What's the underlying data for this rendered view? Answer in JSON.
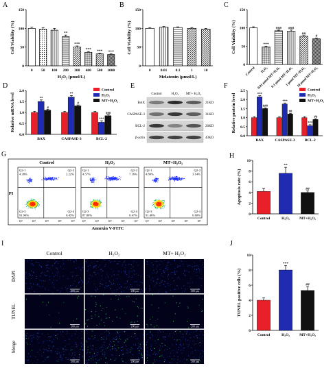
{
  "panels": {
    "A": {
      "label": "A",
      "ylabel": "Cell Viability (%)",
      "xlabel": "H₂O₂ (μmol/L)",
      "categories": [
        "0",
        "50",
        "100",
        "200",
        "300",
        "400",
        "500",
        "1000"
      ],
      "values": [
        100,
        98,
        95,
        78,
        50,
        36,
        32,
        30
      ],
      "errors": [
        3,
        4,
        5,
        4,
        3,
        2,
        2,
        2
      ],
      "sig": [
        "",
        "",
        "",
        "**",
        "***",
        "***",
        "***",
        "***"
      ],
      "ylim": [
        0,
        150
      ],
      "yticks": [
        0,
        50,
        100,
        150
      ]
    },
    "B": {
      "label": "B",
      "ylabel": "Cell Viability (%)",
      "xlabel": "Melatonin (μmol/L)",
      "categories": [
        "0",
        "0.01",
        "0.1",
        "1",
        "10"
      ],
      "values": [
        100,
        103,
        102,
        100,
        98
      ],
      "errors": [
        2,
        2,
        2,
        2,
        2
      ],
      "ylim": [
        0,
        150
      ],
      "yticks": [
        0,
        50,
        100,
        150
      ]
    },
    "C": {
      "label": "C",
      "ylabel": "Cell Viability (%)",
      "categories": [
        "Control",
        "H₂O₂",
        "0.01 μmol MT+H₂O₂",
        "0.1 μmol MT+H₂O₂",
        "1 μmol MT+H₂O₂",
        "10 μmol MT+H₂O₂"
      ],
      "values": [
        100,
        48,
        92,
        91,
        77,
        70
      ],
      "errors": [
        3,
        2,
        2,
        3,
        2,
        2
      ],
      "sig": [
        "",
        "***",
        "###",
        "###",
        "##",
        "#"
      ],
      "ylim": [
        0,
        150
      ],
      "yticks": [
        0,
        50,
        100,
        150
      ]
    },
    "D": {
      "label": "D",
      "ylabel": "Relative mRNA level",
      "categories": [
        "BAX",
        "CASPASE-3",
        "BCL-2"
      ],
      "series": [
        {
          "name": "Control",
          "values": [
            1.0,
            1.0,
            1.0
          ],
          "sig": [
            "",
            "",
            ""
          ]
        },
        {
          "name": "H₂O₂",
          "values": [
            1.5,
            1.7,
            0.55
          ],
          "sig": [
            "**",
            "**",
            "***"
          ]
        },
        {
          "name": "MT+H₂O₂",
          "values": [
            1.1,
            1.3,
            0.85
          ],
          "sig": [
            "#",
            "#",
            "###"
          ]
        }
      ],
      "errors": [
        0.05,
        0.07,
        0.04
      ],
      "ylim": [
        0,
        2.0
      ],
      "yticks": [
        0,
        0.5,
        1.0,
        1.5,
        2.0
      ]
    },
    "E": {
      "label": "E",
      "headers": [
        "Control",
        "H₂O₂",
        "MT+ H₂O₂"
      ],
      "bands": [
        {
          "name": "BAX",
          "kd": "21KD"
        },
        {
          "name": "CASPASE-3",
          "kd": "31KD"
        },
        {
          "name": "BCL-2",
          "kd": "26KD"
        },
        {
          "name": "β-actin",
          "kd": "43KD"
        }
      ]
    },
    "F": {
      "label": "F",
      "ylabel": "Relative protein level",
      "categories": [
        "BAX",
        "CASPASE-3",
        "BCL-2"
      ],
      "series": [
        {
          "name": "Control",
          "values": [
            1.0,
            1.0,
            1.0
          ],
          "sig": [
            "",
            "",
            ""
          ]
        },
        {
          "name": "H₂O₂",
          "values": [
            2.15,
            1.75,
            0.55
          ],
          "sig": [
            "***",
            "***",
            "***"
          ]
        },
        {
          "name": "MT+H₂O₂",
          "values": [
            1.5,
            1.2,
            0.9
          ],
          "sig": [
            "###",
            "##",
            "##"
          ]
        }
      ],
      "errors": [
        0.05,
        0.06,
        0.04
      ],
      "ylim": [
        0,
        2.5
      ],
      "yticks": [
        0.0,
        0.5,
        1.0,
        1.5,
        2.0,
        2.5
      ]
    },
    "G": {
      "label": "G",
      "xlabel": "Annexin V-FITC",
      "ylabel": "PI",
      "plots": [
        {
          "title": "Control",
          "q1": "Q2-1\n4.38%",
          "q2": "Q2-2\n2.22%",
          "q3": "Q2-3\n91.94%",
          "q4": "Q2-4\n0.45%"
        },
        {
          "title": "H₂O₂",
          "q1": "Q2-1\n4.57%",
          "q2": "Q2-2\n7.16%",
          "q3": "Q2-3\n87.80%",
          "q4": "Q2-4\n0.47%"
        },
        {
          "title": "MT+H₂O₂",
          "q1": "Q2-1\n4.80%",
          "q2": "Q2-2\n3.14%",
          "q3": "Q2-3\n91.46%",
          "q4": "Q2-4\n0.60%"
        }
      ],
      "ticks": [
        "10³",
        "10⁴",
        "10⁵",
        "10⁶",
        "10⁷"
      ]
    },
    "H": {
      "label": "H",
      "ylabel": "Apoptosis rate (%)",
      "categories": [
        "Control",
        "H₂O₂",
        "MT+H₂O₂"
      ],
      "values": [
        4.2,
        7.6,
        4.0
      ],
      "errors": [
        0.6,
        1.1,
        0.3
      ],
      "sig": [
        "",
        "**",
        "##"
      ],
      "ylim": [
        0,
        10
      ],
      "yticks": [
        0,
        2,
        4,
        6,
        8,
        10
      ]
    },
    "I": {
      "label": "I",
      "columns": [
        "Control",
        "H₂O₂",
        "MT+ H₂O₂"
      ],
      "rows": [
        "DAPI",
        "TUNEL",
        "Merge"
      ],
      "scale": "200 μm"
    },
    "J": {
      "label": "J",
      "ylabel": "TUNEL positive cells (%)",
      "categories": [
        "Control",
        "H₂O₂",
        "MT+H₂O₂"
      ],
      "values": [
        4.0,
        8.0,
        5.3
      ],
      "errors": [
        0.3,
        0.6,
        0.5
      ],
      "sig": [
        "",
        "***",
        "##"
      ],
      "ylim": [
        0,
        10
      ],
      "yticks": [
        0,
        2,
        4,
        6,
        8,
        10
      ]
    }
  },
  "colors": {
    "control": "#e8202a",
    "h2o2": "#1f2bb0",
    "mt": "#111111"
  },
  "chart_data": [
    {
      "type": "bar",
      "categories": [
        "0",
        "50",
        "100",
        "200",
        "300",
        "400",
        "500",
        "1000"
      ],
      "values": [
        100,
        98,
        95,
        78,
        50,
        36,
        32,
        30
      ],
      "xlabel": "H₂O₂ (μmol/L)",
      "ylabel": "Cell Viability (%)",
      "ylim": [
        0,
        150
      ]
    },
    {
      "type": "bar",
      "categories": [
        "0",
        "0.01",
        "0.1",
        "1",
        "10"
      ],
      "values": [
        100,
        103,
        102,
        100,
        98
      ],
      "xlabel": "Melatonin (μmol/L)",
      "ylabel": "Cell Viability (%)",
      "ylim": [
        0,
        150
      ]
    },
    {
      "type": "bar",
      "categories": [
        "Control",
        "H₂O₂",
        "0.01 μmol MT+H₂O₂",
        "0.1 μmol MT+H₂O₂",
        "1 μmol MT+H₂O₂",
        "10 μmol MT+H₂O₂"
      ],
      "values": [
        100,
        48,
        92,
        91,
        77,
        70
      ],
      "ylabel": "Cell Viability (%)",
      "ylim": [
        0,
        150
      ]
    },
    {
      "type": "bar",
      "categories": [
        "BAX",
        "CASPASE-3",
        "BCL-2"
      ],
      "series": [
        {
          "name": "Control",
          "values": [
            1.0,
            1.0,
            1.0
          ]
        },
        {
          "name": "H₂O₂",
          "values": [
            1.5,
            1.7,
            0.55
          ]
        },
        {
          "name": "MT+H₂O₂",
          "values": [
            1.1,
            1.3,
            0.85
          ]
        }
      ],
      "ylabel": "Relative mRNA level",
      "ylim": [
        0,
        2.0
      ]
    },
    {
      "type": "bar",
      "categories": [
        "BAX",
        "CASPASE-3",
        "BCL-2"
      ],
      "series": [
        {
          "name": "Control",
          "values": [
            1.0,
            1.0,
            1.0
          ]
        },
        {
          "name": "H₂O₂",
          "values": [
            2.15,
            1.75,
            0.55
          ]
        },
        {
          "name": "MT+H₂O₂",
          "values": [
            1.5,
            1.2,
            0.9
          ]
        }
      ],
      "ylabel": "Relative protein level",
      "ylim": [
        0,
        2.5
      ]
    },
    {
      "type": "bar",
      "categories": [
        "Control",
        "H₂O₂",
        "MT+H₂O₂"
      ],
      "values": [
        4.2,
        7.6,
        4.0
      ],
      "ylabel": "Apoptosis rate (%)",
      "ylim": [
        0,
        10
      ]
    },
    {
      "type": "bar",
      "categories": [
        "Control",
        "H₂O₂",
        "MT+H₂O₂"
      ],
      "values": [
        4.0,
        8.0,
        5.3
      ],
      "ylabel": "TUNEL positive cells (%)",
      "ylim": [
        0,
        10
      ]
    }
  ]
}
